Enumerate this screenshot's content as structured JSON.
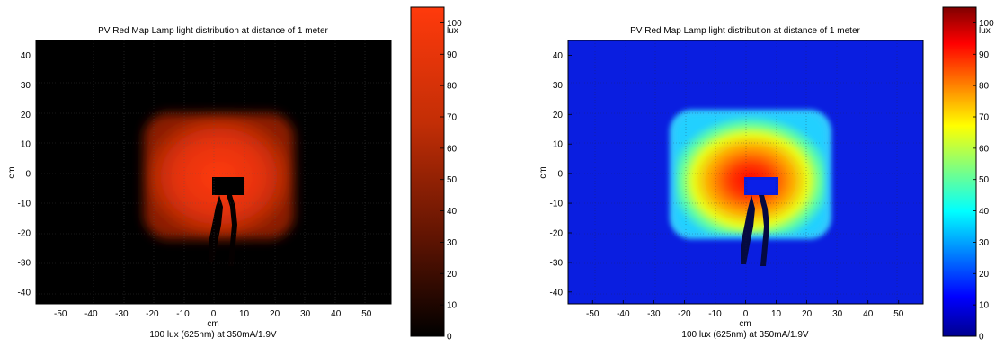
{
  "figure": {
    "panels": [
      {
        "id": "left",
        "title": "PV Red Map Lamp light distribution at distance of 1 meter",
        "xlabel": "cm",
        "ylabel": "cm",
        "caption": "100 lux (625nm) at 350mA/1.9V",
        "colormap": "black-to-red",
        "colorbar": {
          "unit": "lux",
          "ticks": [
            "100",
            "90",
            "80",
            "70",
            "60",
            "50",
            "40",
            "30",
            "20",
            "10",
            "0"
          ]
        }
      },
      {
        "id": "right",
        "title": "PV Red Map Lamp light distribution at distance of 1 meter",
        "xlabel": "cm",
        "ylabel": "cm",
        "caption": "100 lux (625nm) at 350mA/1.9V",
        "colormap": "jet",
        "colorbar": {
          "unit": "lux",
          "ticks": [
            "100",
            "90",
            "80",
            "70",
            "60",
            "50",
            "40",
            "30",
            "20",
            "10",
            "0"
          ]
        }
      }
    ]
  },
  "chart_data": [
    {
      "type": "heatmap",
      "title": "PV Red Map Lamp light distribution at distance of 1 meter",
      "xlabel": "cm",
      "ylabel": "cm",
      "xlim": [
        -58,
        58
      ],
      "ylim": [
        -44,
        45
      ],
      "xticks": [
        "-50",
        "-40",
        "-30",
        "-20",
        "-10",
        "0",
        "10",
        "20",
        "30",
        "40",
        "50"
      ],
      "yticks": [
        "40",
        "30",
        "20",
        "10",
        "0",
        "-10",
        "-20",
        "-30",
        "-40"
      ],
      "value_range": [
        0,
        105
      ],
      "colorbar_label": "lux",
      "colormap": "black-to-red",
      "illuminated_region": {
        "x": [
          -20,
          25
        ],
        "y": [
          -20,
          17
        ],
        "peak_lux": 100,
        "peak_at": [
          0,
          5
        ],
        "edge_lux": 75
      },
      "background_lux": 0,
      "caption": "100 lux (625nm) at 350mA/1.9V"
    },
    {
      "type": "heatmap",
      "title": "PV Red Map Lamp light distribution at distance of 1 meter",
      "xlabel": "cm",
      "ylabel": "cm",
      "xlim": [
        -58,
        58
      ],
      "ylim": [
        -44,
        45
      ],
      "xticks": [
        "-50",
        "-40",
        "-30",
        "-20",
        "-10",
        "0",
        "10",
        "20",
        "30",
        "40",
        "50"
      ],
      "yticks": [
        "40",
        "30",
        "20",
        "10",
        "0",
        "-10",
        "-20",
        "-30",
        "-40"
      ],
      "value_range": [
        0,
        105
      ],
      "colorbar_label": "lux",
      "colormap": "jet",
      "illuminated_region": {
        "x": [
          -20,
          25
        ],
        "y": [
          -20,
          17
        ],
        "peak_lux": 100,
        "peak_at": [
          0,
          5
        ],
        "edge_lux": 50
      },
      "background_lux": 10,
      "caption": "100 lux (625nm) at 350mA/1.9V"
    }
  ]
}
